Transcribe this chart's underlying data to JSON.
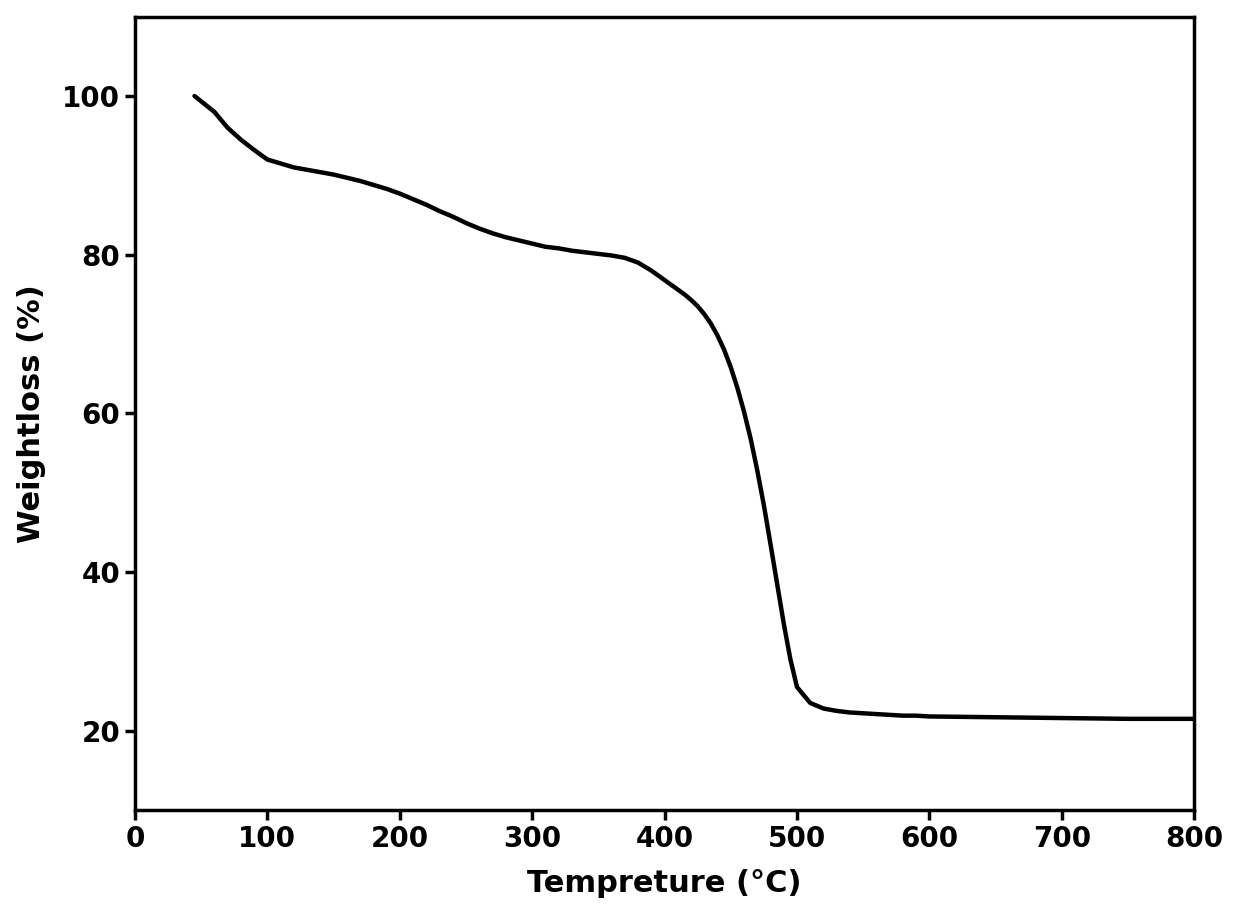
{
  "title": "",
  "xlabel": "Tempreture (°C)",
  "ylabel": "Weightloss (%)",
  "xlim": [
    0,
    800
  ],
  "ylim": [
    10,
    110
  ],
  "xticks": [
    0,
    100,
    200,
    300,
    400,
    500,
    600,
    700,
    800
  ],
  "yticks": [
    20,
    40,
    60,
    80,
    100
  ],
  "line_color": "#000000",
  "line_width": 3.2,
  "background_color": "#ffffff",
  "xlabel_fontsize": 22,
  "ylabel_fontsize": 22,
  "tick_fontsize": 20,
  "curve_x": [
    45,
    60,
    70,
    80,
    90,
    100,
    110,
    120,
    130,
    140,
    150,
    160,
    170,
    180,
    190,
    200,
    210,
    220,
    230,
    240,
    250,
    260,
    270,
    280,
    290,
    300,
    310,
    320,
    330,
    340,
    350,
    360,
    370,
    375,
    380,
    385,
    390,
    395,
    400,
    405,
    410,
    415,
    420,
    425,
    430,
    435,
    440,
    445,
    450,
    455,
    460,
    465,
    470,
    475,
    480,
    485,
    490,
    495,
    500,
    510,
    520,
    530,
    540,
    550,
    560,
    570,
    580,
    590,
    600,
    650,
    700,
    750,
    800
  ],
  "curve_y": [
    100,
    98.0,
    96.0,
    94.5,
    93.2,
    92.0,
    91.5,
    91.0,
    90.7,
    90.4,
    90.1,
    89.7,
    89.3,
    88.8,
    88.3,
    87.7,
    87.0,
    86.3,
    85.5,
    84.8,
    84.0,
    83.3,
    82.7,
    82.2,
    81.8,
    81.4,
    81.0,
    80.8,
    80.5,
    80.3,
    80.1,
    79.9,
    79.6,
    79.3,
    79.0,
    78.5,
    78.0,
    77.4,
    76.8,
    76.2,
    75.6,
    75.0,
    74.3,
    73.5,
    72.5,
    71.3,
    69.8,
    68.0,
    65.8,
    63.2,
    60.2,
    56.8,
    52.8,
    48.4,
    43.5,
    38.5,
    33.5,
    29.0,
    25.5,
    23.5,
    22.8,
    22.5,
    22.3,
    22.2,
    22.1,
    22.0,
    21.9,
    21.9,
    21.8,
    21.7,
    21.6,
    21.5,
    21.5
  ]
}
